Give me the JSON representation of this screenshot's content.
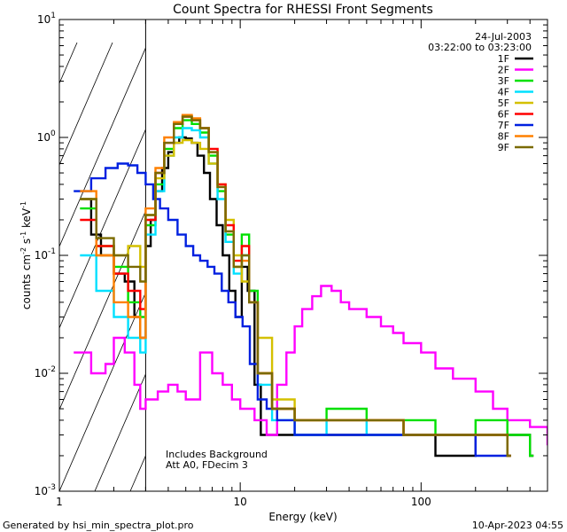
{
  "chart_data": {
    "type": "line",
    "title": "Count Spectra for RHESSI Front Segments",
    "xlabel": "Energy (keV)",
    "ylabel": "counts cm^-2 s^-1 keV^-1",
    "xscale": "log",
    "yscale": "log",
    "xlim": [
      1,
      500
    ],
    "ylim": [
      0.001,
      10
    ],
    "x_ticks": [
      {
        "v": 1,
        "label": "1"
      },
      {
        "v": 10,
        "label": "10"
      },
      {
        "v": 100,
        "label": "100"
      }
    ],
    "y_ticks": [
      {
        "v": 10,
        "base": "10",
        "exp": "1"
      },
      {
        "v": 1,
        "base": "10",
        "exp": "0"
      },
      {
        "v": 0.1,
        "base": "10",
        "exp": "-1"
      },
      {
        "v": 0.01,
        "base": "10",
        "exp": "-2"
      },
      {
        "v": 0.001,
        "base": "10",
        "exp": "-3"
      }
    ],
    "shaded_region": {
      "x_from": 1,
      "x_to": 3
    },
    "date": "24-Jul-2003",
    "time_range": "03:22:00 to 03:23:00",
    "annotations": [
      "Includes Background",
      "Att A0, FDecim 3"
    ],
    "series": [
      {
        "name": "1F",
        "color": "#000000",
        "x": [
          1.3,
          1.5,
          1.7,
          2.0,
          2.3,
          2.6,
          2.8,
          3.0,
          3.2,
          3.4,
          3.7,
          4.0,
          4.3,
          4.6,
          5.0,
          5.4,
          5.8,
          6.3,
          6.8,
          7.4,
          8.0,
          8.7,
          9.4,
          10.2,
          11.0,
          12.0,
          13.0,
          20,
          30,
          50,
          80,
          120,
          200,
          300,
          400
        ],
        "y": [
          0.3,
          0.15,
          0.1,
          0.07,
          0.06,
          0.03,
          0.02,
          0.12,
          0.2,
          0.35,
          0.55,
          0.75,
          0.9,
          1.0,
          0.98,
          0.9,
          0.7,
          0.5,
          0.3,
          0.18,
          0.1,
          0.05,
          0.03,
          0.08,
          0.05,
          0.008,
          0.003,
          0.003,
          0.003,
          0.003,
          0.003,
          0.002,
          0.003,
          0.003,
          0.002
        ]
      },
      {
        "name": "2F",
        "color": "#ff00ff",
        "x": [
          1.2,
          1.5,
          1.8,
          2.0,
          2.3,
          2.6,
          2.8,
          3.0,
          3.5,
          4.0,
          4.5,
          5.0,
          6.0,
          7.0,
          8.0,
          9.0,
          10,
          12,
          14,
          16,
          18,
          20,
          22,
          25,
          28,
          32,
          36,
          40,
          50,
          60,
          70,
          80,
          100,
          120,
          150,
          200,
          250,
          300,
          400,
          500
        ],
        "y": [
          0.015,
          0.01,
          0.012,
          0.02,
          0.015,
          0.008,
          0.005,
          0.006,
          0.007,
          0.008,
          0.007,
          0.006,
          0.015,
          0.01,
          0.008,
          0.006,
          0.005,
          0.004,
          0.003,
          0.008,
          0.015,
          0.025,
          0.035,
          0.045,
          0.055,
          0.05,
          0.04,
          0.035,
          0.03,
          0.025,
          0.022,
          0.018,
          0.015,
          0.011,
          0.009,
          0.007,
          0.005,
          0.004,
          0.0035,
          0.0025
        ]
      },
      {
        "name": "3F",
        "color": "#00e000",
        "x": [
          1.3,
          1.6,
          2.0,
          2.4,
          2.8,
          3.0,
          3.4,
          3.8,
          4.3,
          4.8,
          5.4,
          6.0,
          6.7,
          7.5,
          8.3,
          9.2,
          10.2,
          11.2,
          12.5,
          15,
          20,
          30,
          50,
          80,
          120,
          200,
          300,
          400
        ],
        "y": [
          0.25,
          0.12,
          0.08,
          0.04,
          0.03,
          0.18,
          0.4,
          0.8,
          1.2,
          1.4,
          1.3,
          1.1,
          0.7,
          0.35,
          0.15,
          0.08,
          0.15,
          0.05,
          0.01,
          0.005,
          0.004,
          0.005,
          0.004,
          0.004,
          0.003,
          0.004,
          0.003,
          0.002
        ]
      },
      {
        "name": "4F",
        "color": "#00e0ff",
        "x": [
          1.3,
          1.6,
          2.0,
          2.4,
          2.8,
          3.0,
          3.4,
          3.8,
          4.3,
          4.8,
          5.4,
          6.0,
          6.7,
          7.5,
          8.3,
          9.2,
          10.2,
          11.2,
          12.5,
          15,
          20,
          30,
          50,
          80,
          120,
          200,
          300
        ],
        "y": [
          0.1,
          0.05,
          0.03,
          0.02,
          0.015,
          0.15,
          0.35,
          0.7,
          1.0,
          1.2,
          1.15,
          1.0,
          0.6,
          0.3,
          0.13,
          0.07,
          0.1,
          0.04,
          0.008,
          0.004,
          0.003,
          0.004,
          0.003,
          0.003,
          0.003,
          0.003,
          0.002
        ]
      },
      {
        "name": "5F",
        "color": "#d4c000",
        "x": [
          1.3,
          1.6,
          2.0,
          2.4,
          2.8,
          3.0,
          3.4,
          3.8,
          4.3,
          4.8,
          5.4,
          6.0,
          6.7,
          7.5,
          8.3,
          9.2,
          10.2,
          11.2,
          12.5,
          15,
          20,
          30,
          50,
          80,
          120,
          200,
          300
        ],
        "y": [
          0.3,
          0.1,
          0.1,
          0.12,
          0.08,
          0.22,
          0.45,
          0.7,
          0.9,
          0.95,
          0.9,
          0.8,
          0.6,
          0.4,
          0.2,
          0.1,
          0.06,
          0.04,
          0.02,
          0.006,
          0.004,
          0.004,
          0.004,
          0.003,
          0.003,
          0.003,
          0.002
        ]
      },
      {
        "name": "6F",
        "color": "#ff0000",
        "x": [
          1.3,
          1.6,
          2.0,
          2.4,
          2.8,
          3.0,
          3.4,
          3.8,
          4.3,
          4.8,
          5.4,
          6.0,
          6.7,
          7.5,
          8.3,
          9.2,
          10.2,
          11.2,
          12.5,
          15,
          20,
          30,
          50,
          80,
          120,
          200,
          300
        ],
        "y": [
          0.2,
          0.12,
          0.07,
          0.05,
          0.035,
          0.2,
          0.5,
          0.9,
          1.3,
          1.5,
          1.4,
          1.2,
          0.8,
          0.4,
          0.18,
          0.09,
          0.12,
          0.04,
          0.01,
          0.005,
          0.004,
          0.004,
          0.004,
          0.003,
          0.003,
          0.003,
          0.002
        ]
      },
      {
        "name": "7F",
        "color": "#0020e0",
        "x": [
          1.2,
          1.5,
          1.8,
          2.1,
          2.4,
          2.7,
          3.0,
          3.3,
          3.6,
          4.0,
          4.5,
          5.0,
          5.5,
          6.0,
          6.6,
          7.2,
          7.9,
          8.6,
          9.4,
          10.3,
          11.3,
          12.5,
          14,
          16,
          20,
          30,
          50,
          80,
          120,
          200,
          300
        ],
        "y": [
          0.35,
          0.45,
          0.55,
          0.6,
          0.58,
          0.5,
          0.4,
          0.3,
          0.25,
          0.2,
          0.15,
          0.12,
          0.1,
          0.09,
          0.08,
          0.07,
          0.05,
          0.04,
          0.03,
          0.025,
          0.012,
          0.006,
          0.005,
          0.004,
          0.003,
          0.003,
          0.003,
          0.003,
          0.003,
          0.002,
          0.002
        ]
      },
      {
        "name": "8F",
        "color": "#ff8000",
        "x": [
          1.3,
          1.6,
          2.0,
          2.4,
          2.8,
          3.0,
          3.4,
          3.8,
          4.3,
          4.8,
          5.4,
          6.0,
          6.7,
          7.5,
          8.3,
          9.2,
          10.2,
          11.2,
          12.5,
          15,
          20,
          30,
          50,
          80,
          120,
          200,
          300
        ],
        "y": [
          0.35,
          0.1,
          0.04,
          0.03,
          0.02,
          0.25,
          0.55,
          1.0,
          1.35,
          1.55,
          1.45,
          1.2,
          0.75,
          0.38,
          0.16,
          0.08,
          0.09,
          0.04,
          0.01,
          0.005,
          0.004,
          0.004,
          0.004,
          0.003,
          0.003,
          0.003,
          0.002
        ]
      },
      {
        "name": "9F",
        "color": "#7a6a00",
        "x": [
          1.3,
          1.6,
          2.0,
          2.4,
          2.8,
          3.0,
          3.4,
          3.8,
          4.3,
          4.8,
          5.4,
          6.0,
          6.7,
          7.5,
          8.3,
          9.2,
          10.2,
          11.2,
          12.5,
          15,
          20,
          30,
          50,
          80,
          120,
          200,
          300
        ],
        "y": [
          0.3,
          0.14,
          0.1,
          0.08,
          0.06,
          0.22,
          0.5,
          0.9,
          1.3,
          1.5,
          1.4,
          1.2,
          0.75,
          0.38,
          0.16,
          0.08,
          0.1,
          0.04,
          0.01,
          0.005,
          0.004,
          0.004,
          0.004,
          0.003,
          0.003,
          0.003,
          0.002
        ]
      }
    ]
  },
  "footer": {
    "left": "Generated by hsi_min_spectra_plot.pro",
    "right": "10-Apr-2023 04:55"
  }
}
